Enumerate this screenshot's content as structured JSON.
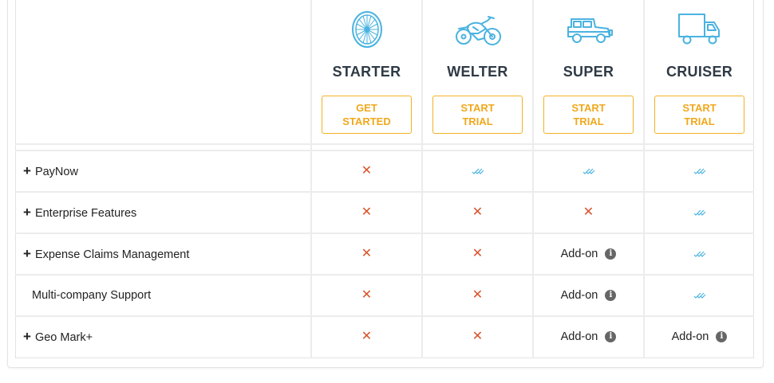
{
  "plans": [
    {
      "name": "STARTER",
      "cta": "GET\nSTARTED",
      "icon": "bicycle-wheel-icon"
    },
    {
      "name": "WELTER",
      "cta": "START\nTRIAL",
      "icon": "motorcycle-icon"
    },
    {
      "name": "SUPER",
      "cta": "START\nTRIAL",
      "icon": "jeep-icon"
    },
    {
      "name": "CRUISER",
      "cta": "START\nTRIAL",
      "icon": "truck-icon"
    }
  ],
  "features": [
    {
      "label": "PayNow",
      "expandable": true,
      "cells": [
        "no",
        "yes",
        "yes",
        "yes"
      ]
    },
    {
      "label": "Enterprise Features",
      "expandable": true,
      "cells": [
        "no",
        "no",
        "no",
        "yes"
      ]
    },
    {
      "label": "Expense Claims Management",
      "expandable": true,
      "cells": [
        "no",
        "no",
        "Add-on",
        "yes"
      ]
    },
    {
      "label": "Multi-company Support",
      "expandable": false,
      "cells": [
        "no",
        "no",
        "Add-on",
        "yes"
      ]
    },
    {
      "label": "Geo Mark+",
      "expandable": true,
      "cells": [
        "no",
        "no",
        "Add-on",
        "Add-on"
      ]
    }
  ],
  "symbols": {
    "plus": "+",
    "cross": "✕",
    "info": "i"
  },
  "colors": {
    "accent": "#f2b124",
    "icon": "#4ab3e0",
    "cross": "#d9542b",
    "check": "#4ab3e0"
  }
}
